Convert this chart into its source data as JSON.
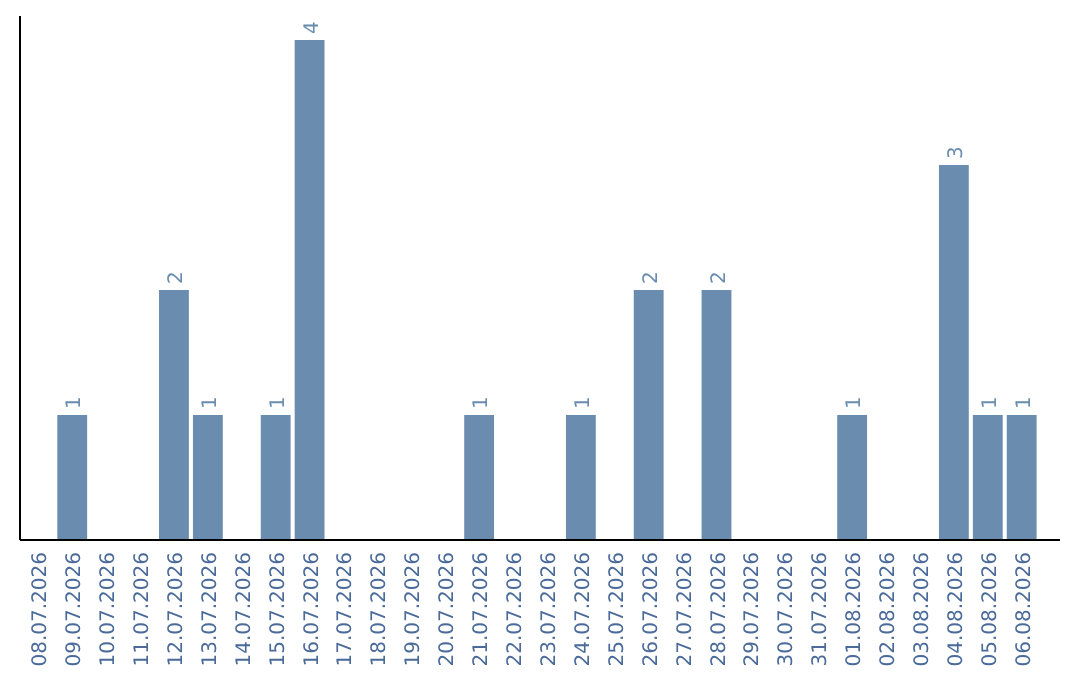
{
  "chart_data": {
    "type": "bar",
    "color": "#6a8caf",
    "categories": [
      "08.07.2026",
      "09.07.2026",
      "10.07.2026",
      "11.07.2026",
      "12.07.2026",
      "13.07.2026",
      "14.07.2026",
      "15.07.2026",
      "16.07.2026",
      "17.07.2026",
      "18.07.2026",
      "19.07.2026",
      "20.07.2026",
      "21.07.2026",
      "22.07.2026",
      "23.07.2026",
      "24.07.2026",
      "25.07.2026",
      "26.07.2026",
      "27.07.2026",
      "28.07.2026",
      "29.07.2026",
      "30.07.2026",
      "31.07.2026",
      "01.08.2026",
      "02.08.2026",
      "03.08.2026",
      "04.08.2026",
      "05.08.2026",
      "06.08.2026"
    ],
    "values": [
      0,
      1,
      0,
      0,
      2,
      1,
      0,
      1,
      4,
      0,
      0,
      0,
      0,
      1,
      0,
      0,
      1,
      0,
      2,
      0,
      2,
      0,
      0,
      0,
      1,
      0,
      0,
      3,
      1,
      1
    ],
    "value_labels": [
      null,
      "1",
      null,
      null,
      "2",
      "1",
      null,
      "1",
      "4",
      null,
      null,
      null,
      null,
      "1",
      null,
      null,
      "1",
      null,
      "2",
      null,
      "2",
      null,
      null,
      null,
      "1",
      null,
      null,
      "3",
      "1",
      "1"
    ],
    "grid": false
  }
}
